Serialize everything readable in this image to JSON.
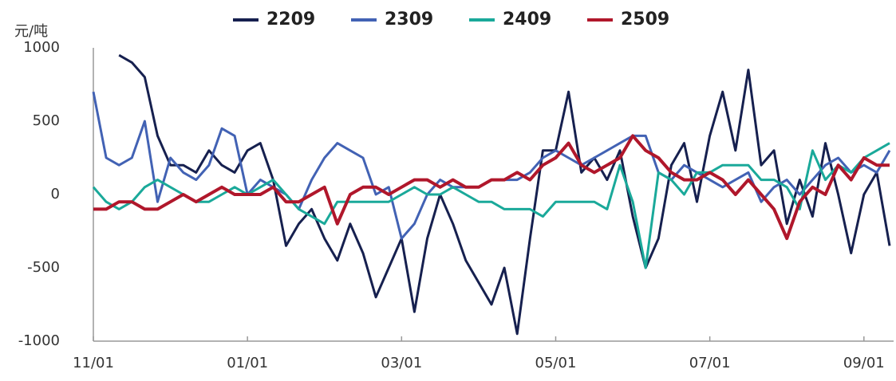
{
  "chart_data": {
    "type": "line",
    "y_label": "元/吨",
    "categories": [
      "11/01",
      "11/06",
      "11/11",
      "11/16",
      "11/21",
      "11/26",
      "12/01",
      "12/06",
      "12/11",
      "12/16",
      "12/21",
      "12/26",
      "01/01",
      "01/06",
      "01/11",
      "01/16",
      "01/21",
      "01/26",
      "02/01",
      "02/06",
      "02/11",
      "02/16",
      "02/21",
      "02/26",
      "03/01",
      "03/06",
      "03/11",
      "03/16",
      "03/21",
      "03/26",
      "04/01",
      "04/06",
      "04/11",
      "04/16",
      "04/21",
      "04/26",
      "05/01",
      "05/06",
      "05/11",
      "05/16",
      "05/21",
      "05/26",
      "06/01",
      "06/06",
      "06/11",
      "06/16",
      "06/21",
      "06/26",
      "07/01",
      "07/06",
      "07/11",
      "07/16",
      "07/21",
      "07/26",
      "08/01",
      "08/06",
      "08/11",
      "08/16",
      "08/21",
      "08/26",
      "09/01",
      "09/06",
      "09/11"
    ],
    "xticks": [
      "11/01",
      "01/01",
      "03/01",
      "05/01",
      "07/01",
      "09/01"
    ],
    "ylim": [
      -1000,
      1000
    ],
    "yticks": [
      -1000,
      -500,
      0,
      500,
      1000
    ],
    "grid": false,
    "legend": "top",
    "series": [
      {
        "name": "2209",
        "color": "#16204f",
        "values": [
          null,
          null,
          950,
          900,
          800,
          400,
          200,
          200,
          150,
          300,
          200,
          150,
          300,
          350,
          100,
          -350,
          -200,
          -100,
          -300,
          -450,
          -200,
          -400,
          -700,
          -500,
          -300,
          -800,
          -300,
          0,
          -200,
          -450,
          -600,
          -750,
          -500,
          -950,
          -300,
          300,
          300,
          700,
          150,
          250,
          100,
          300,
          -150,
          -500,
          -300,
          200,
          350,
          -50,
          400,
          700,
          300,
          850,
          200,
          300,
          -200,
          100,
          -150,
          350,
          0,
          -400,
          0,
          150,
          -350
        ]
      },
      {
        "name": "2309",
        "color": "#4262b4",
        "values": [
          700,
          250,
          200,
          250,
          500,
          -50,
          250,
          150,
          100,
          200,
          450,
          400,
          0,
          100,
          50,
          0,
          -100,
          100,
          250,
          350,
          300,
          250,
          0,
          50,
          -300,
          -200,
          0,
          100,
          50,
          50,
          50,
          100,
          100,
          100,
          150,
          250,
          300,
          250,
          200,
          250,
          300,
          350,
          400,
          400,
          150,
          100,
          200,
          150,
          100,
          50,
          100,
          150,
          -50,
          50,
          100,
          0,
          100,
          200,
          250,
          150,
          200,
          150,
          300
        ]
      },
      {
        "name": "2409",
        "color": "#1aa99a",
        "values": [
          50,
          -50,
          -100,
          -50,
          50,
          100,
          50,
          0,
          -50,
          -50,
          0,
          50,
          0,
          50,
          100,
          0,
          -100,
          -150,
          -200,
          -50,
          -50,
          -50,
          -50,
          -50,
          0,
          50,
          0,
          0,
          50,
          0,
          -50,
          -50,
          -100,
          -100,
          -100,
          -150,
          -50,
          -50,
          -50,
          -50,
          -100,
          200,
          -50,
          -500,
          150,
          100,
          0,
          150,
          150,
          200,
          200,
          200,
          100,
          100,
          50,
          -100,
          300,
          100,
          200,
          150,
          250,
          300,
          350
        ]
      },
      {
        "name": "2509",
        "color": "#b0172b",
        "values": [
          -100,
          -100,
          -50,
          -50,
          -100,
          -100,
          -50,
          0,
          -50,
          0,
          50,
          0,
          0,
          0,
          50,
          -50,
          -50,
          0,
          50,
          -200,
          0,
          50,
          50,
          0,
          50,
          100,
          100,
          50,
          100,
          50,
          50,
          100,
          100,
          150,
          100,
          200,
          250,
          350,
          200,
          150,
          200,
          250,
          400,
          300,
          250,
          150,
          100,
          100,
          150,
          100,
          0,
          100,
          0,
          -100,
          -300,
          -50,
          50,
          0,
          200,
          100,
          250,
          200,
          200
        ]
      }
    ]
  }
}
